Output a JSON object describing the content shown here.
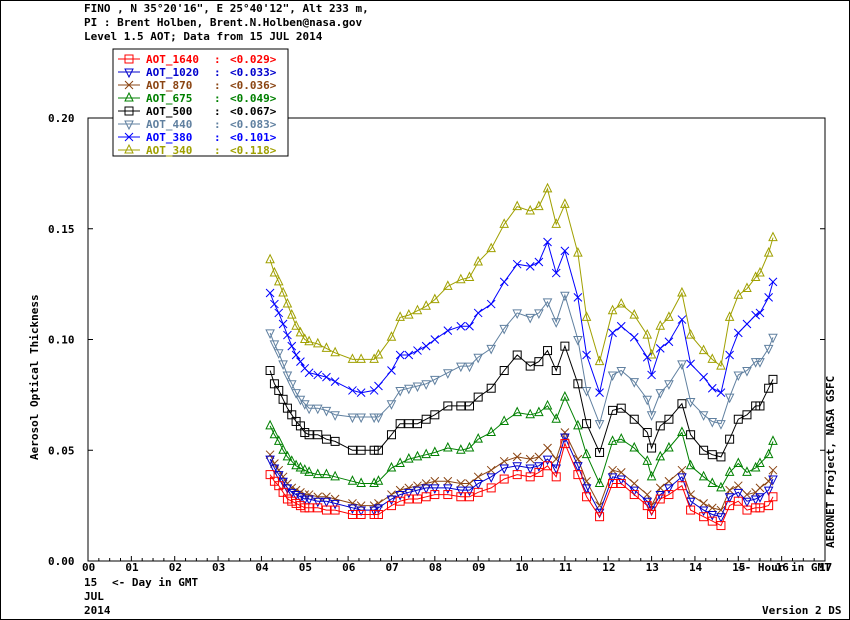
{
  "header": {
    "line1": "FINO , N 35°20'16\", E 25°40'12\", Alt 233 m,",
    "line2": "PI : Brent Holben, Brent.N.Holben@nasa.gov",
    "line3": "Level 1.5 AOT; Data from 15 JUL 2014"
  },
  "footer": {
    "day": "15",
    "day_label": "<- Day in GMT",
    "month": "JUL",
    "year": "2014",
    "version": "Version 2 DS"
  },
  "side_label": "AERONET Project, NASA GSFC",
  "chart_data": {
    "type": "line",
    "ylabel": "Aerosol Optical Thickness",
    "xlabel": "<- Hour in GMT",
    "ylim": [
      0.0,
      0.2
    ],
    "xlim": [
      0,
      17
    ],
    "yticks": [
      "0.00",
      "0.05",
      "0.10",
      "0.15",
      "0.20"
    ],
    "xticks": [
      "00",
      "01",
      "02",
      "03",
      "04",
      "05",
      "06",
      "07",
      "08",
      "09",
      "10",
      "11",
      "12",
      "13",
      "14",
      "15",
      "16",
      "17"
    ],
    "x": [
      4.2,
      4.3,
      4.4,
      4.5,
      4.6,
      4.7,
      4.8,
      4.9,
      5.0,
      5.1,
      5.3,
      5.5,
      5.7,
      6.1,
      6.3,
      6.6,
      6.7,
      7.0,
      7.2,
      7.4,
      7.6,
      7.8,
      8.0,
      8.3,
      8.6,
      8.8,
      9.0,
      9.3,
      9.6,
      9.9,
      10.2,
      10.4,
      10.6,
      10.8,
      11.0,
      11.3,
      11.5,
      11.8,
      12.1,
      12.3,
      12.6,
      12.9,
      13.0,
      13.2,
      13.4,
      13.7,
      13.9,
      14.2,
      14.4,
      14.6,
      14.8,
      15.0,
      15.2,
      15.4,
      15.5,
      15.7,
      15.8
    ],
    "series": [
      {
        "name": "AOT_1640",
        "mean_label": "<0.029>",
        "color": "#ff0000",
        "marker": "square",
        "values": [
          0.039,
          0.036,
          0.034,
          0.031,
          0.028,
          0.027,
          0.026,
          0.025,
          0.024,
          0.024,
          0.024,
          0.023,
          0.023,
          0.021,
          0.021,
          0.021,
          0.021,
          0.025,
          0.027,
          0.028,
          0.028,
          0.029,
          0.03,
          0.03,
          0.029,
          0.029,
          0.031,
          0.033,
          0.037,
          0.039,
          0.038,
          0.04,
          0.043,
          0.038,
          0.053,
          0.039,
          0.029,
          0.02,
          0.035,
          0.035,
          0.03,
          0.025,
          0.021,
          0.028,
          0.03,
          0.034,
          0.023,
          0.02,
          0.018,
          0.016,
          0.025,
          0.027,
          0.023,
          0.024,
          0.024,
          0.025,
          0.029
        ]
      },
      {
        "name": "AOT_1020",
        "mean_label": "<0.033>",
        "color": "#0000cc",
        "marker": "tri-down",
        "values": [
          0.046,
          0.042,
          0.039,
          0.036,
          0.033,
          0.031,
          0.03,
          0.029,
          0.028,
          0.028,
          0.027,
          0.027,
          0.026,
          0.024,
          0.023,
          0.023,
          0.024,
          0.028,
          0.03,
          0.031,
          0.032,
          0.033,
          0.033,
          0.033,
          0.032,
          0.032,
          0.035,
          0.038,
          0.042,
          0.043,
          0.042,
          0.043,
          0.046,
          0.042,
          0.056,
          0.043,
          0.033,
          0.022,
          0.038,
          0.037,
          0.032,
          0.027,
          0.023,
          0.03,
          0.033,
          0.038,
          0.027,
          0.023,
          0.021,
          0.02,
          0.029,
          0.031,
          0.027,
          0.028,
          0.029,
          0.032,
          0.037
        ]
      },
      {
        "name": "AOT_870",
        "mean_label": "<0.036>",
        "color": "#8b4513",
        "marker": "x",
        "values": [
          0.048,
          0.044,
          0.041,
          0.038,
          0.035,
          0.033,
          0.032,
          0.031,
          0.03,
          0.03,
          0.029,
          0.029,
          0.028,
          0.026,
          0.025,
          0.025,
          0.026,
          0.03,
          0.032,
          0.033,
          0.034,
          0.035,
          0.036,
          0.036,
          0.035,
          0.035,
          0.038,
          0.041,
          0.045,
          0.047,
          0.046,
          0.047,
          0.051,
          0.046,
          0.058,
          0.046,
          0.036,
          0.025,
          0.041,
          0.04,
          0.035,
          0.03,
          0.025,
          0.033,
          0.036,
          0.041,
          0.03,
          0.026,
          0.024,
          0.023,
          0.032,
          0.034,
          0.03,
          0.031,
          0.033,
          0.036,
          0.041
        ]
      },
      {
        "name": "AOT_675",
        "mean_label": "<0.049>",
        "color": "#008000",
        "marker": "tri-up",
        "values": [
          0.061,
          0.057,
          0.054,
          0.05,
          0.047,
          0.045,
          0.043,
          0.042,
          0.041,
          0.04,
          0.039,
          0.039,
          0.038,
          0.036,
          0.035,
          0.035,
          0.036,
          0.042,
          0.044,
          0.046,
          0.047,
          0.048,
          0.049,
          0.051,
          0.05,
          0.051,
          0.055,
          0.058,
          0.063,
          0.067,
          0.066,
          0.067,
          0.07,
          0.064,
          0.074,
          0.061,
          0.048,
          0.035,
          0.054,
          0.055,
          0.051,
          0.045,
          0.038,
          0.047,
          0.051,
          0.058,
          0.043,
          0.038,
          0.035,
          0.033,
          0.04,
          0.044,
          0.04,
          0.042,
          0.044,
          0.048,
          0.054
        ]
      },
      {
        "name": "AOT_500",
        "mean_label": "<0.067>",
        "color": "#000000",
        "marker": "square",
        "values": [
          0.086,
          0.08,
          0.077,
          0.073,
          0.069,
          0.066,
          0.063,
          0.061,
          0.058,
          0.057,
          0.057,
          0.055,
          0.054,
          0.05,
          0.05,
          0.05,
          0.05,
          0.057,
          0.062,
          0.062,
          0.062,
          0.064,
          0.066,
          0.07,
          0.07,
          0.07,
          0.074,
          0.078,
          0.086,
          0.093,
          0.088,
          0.09,
          0.095,
          0.086,
          0.097,
          0.08,
          0.062,
          0.049,
          0.068,
          0.069,
          0.064,
          0.058,
          0.051,
          0.061,
          0.064,
          0.071,
          0.057,
          0.05,
          0.048,
          0.047,
          0.055,
          0.064,
          0.066,
          0.07,
          0.07,
          0.078,
          0.082
        ]
      },
      {
        "name": "AOT_440",
        "mean_label": "<0.083>",
        "color": "#6080a0",
        "marker": "tri-down",
        "values": [
          0.103,
          0.098,
          0.094,
          0.089,
          0.084,
          0.08,
          0.076,
          0.073,
          0.071,
          0.069,
          0.069,
          0.068,
          0.066,
          0.065,
          0.065,
          0.065,
          0.065,
          0.071,
          0.077,
          0.078,
          0.079,
          0.08,
          0.082,
          0.085,
          0.088,
          0.088,
          0.092,
          0.096,
          0.105,
          0.112,
          0.11,
          0.112,
          0.117,
          0.108,
          0.12,
          0.1,
          0.077,
          0.062,
          0.084,
          0.086,
          0.081,
          0.073,
          0.066,
          0.076,
          0.08,
          0.089,
          0.072,
          0.066,
          0.063,
          0.062,
          0.074,
          0.084,
          0.086,
          0.09,
          0.09,
          0.096,
          0.101
        ]
      },
      {
        "name": "AOT_380",
        "mean_label": "<0.101>",
        "color": "#0000ff",
        "marker": "x",
        "values": [
          0.121,
          0.116,
          0.112,
          0.107,
          0.102,
          0.097,
          0.093,
          0.09,
          0.087,
          0.085,
          0.084,
          0.083,
          0.081,
          0.077,
          0.076,
          0.077,
          0.079,
          0.086,
          0.093,
          0.093,
          0.095,
          0.097,
          0.1,
          0.104,
          0.106,
          0.106,
          0.112,
          0.116,
          0.126,
          0.134,
          0.133,
          0.135,
          0.144,
          0.13,
          0.14,
          0.119,
          0.093,
          0.076,
          0.103,
          0.106,
          0.101,
          0.092,
          0.084,
          0.096,
          0.099,
          0.109,
          0.089,
          0.083,
          0.078,
          0.076,
          0.093,
          0.103,
          0.107,
          0.111,
          0.112,
          0.119,
          0.126
        ]
      },
      {
        "name": "AOT_340",
        "mean_label": "<0.118>",
        "color": "#a0a000",
        "marker": "tri-up",
        "values": [
          0.136,
          0.13,
          0.126,
          0.121,
          0.116,
          0.111,
          0.106,
          0.103,
          0.1,
          0.099,
          0.098,
          0.096,
          0.094,
          0.091,
          0.091,
          0.091,
          0.093,
          0.101,
          0.11,
          0.111,
          0.113,
          0.115,
          0.118,
          0.124,
          0.127,
          0.128,
          0.135,
          0.141,
          0.152,
          0.16,
          0.158,
          0.16,
          0.168,
          0.152,
          0.161,
          0.139,
          0.11,
          0.09,
          0.113,
          0.116,
          0.111,
          0.102,
          0.093,
          0.106,
          0.11,
          0.121,
          0.102,
          0.095,
          0.091,
          0.088,
          0.11,
          0.12,
          0.123,
          0.128,
          0.13,
          0.139,
          0.146
        ]
      }
    ]
  }
}
